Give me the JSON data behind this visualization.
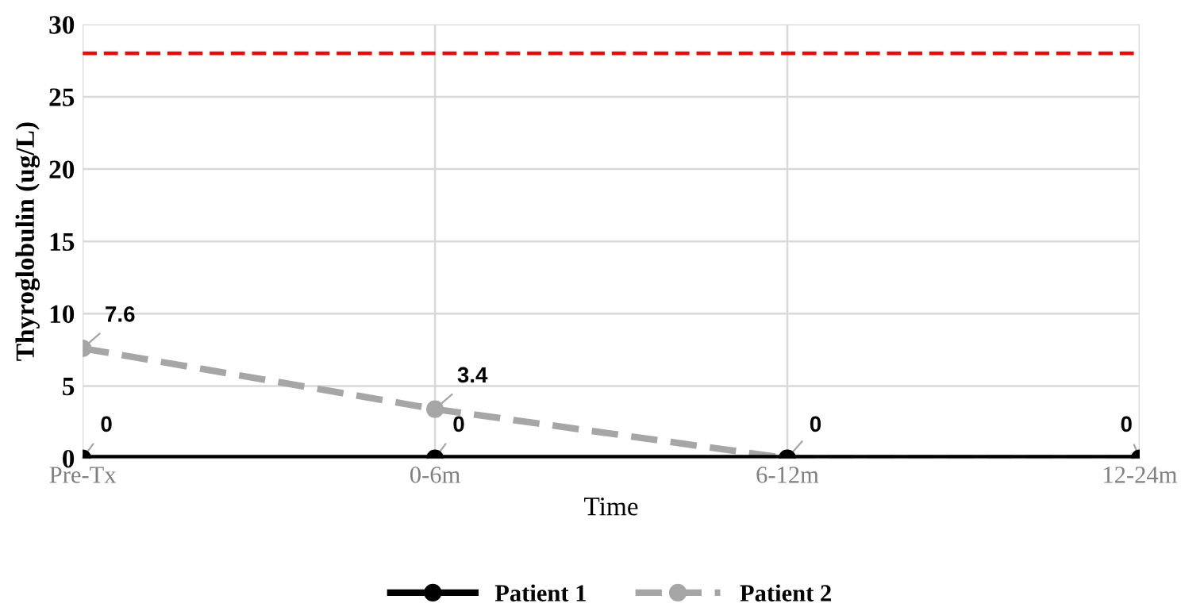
{
  "chart_data": {
    "type": "line",
    "xlabel": "Time",
    "ylabel": "Thyroglobulin (ug/L)",
    "categories": [
      "Pre-Tx",
      "0-6m",
      "6-12m",
      "12-24m"
    ],
    "series": [
      {
        "name": "Patient 1",
        "color": "#000000",
        "values": [
          0,
          0,
          0,
          0
        ],
        "line_style": "solid",
        "value_labels": [
          "0",
          "0",
          null,
          null
        ]
      },
      {
        "name": "Patient 2",
        "color": "#a6a6a6",
        "values": [
          7.6,
          3.4,
          0,
          0
        ],
        "line_style": "dashed",
        "value_labels": [
          "7.6",
          "3.4",
          "0",
          "0"
        ]
      }
    ],
    "ylim": [
      0,
      30
    ],
    "yticks": [
      0,
      5,
      10,
      15,
      20,
      25,
      30
    ],
    "ref_lines": [
      {
        "axis": "y",
        "value": 28,
        "color": "#ff0000",
        "line_style": "dashed"
      }
    ],
    "grid": true,
    "legend": "bottom",
    "marker": "circle"
  }
}
